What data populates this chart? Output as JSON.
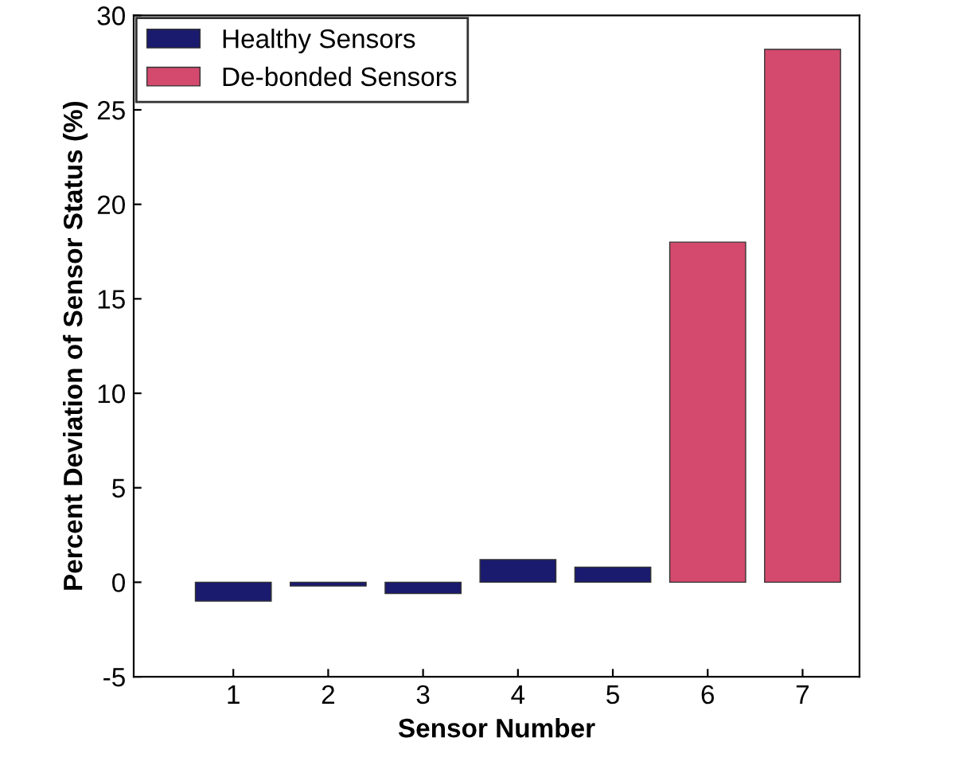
{
  "chart_data": {
    "type": "bar",
    "xlabel": "Sensor Number",
    "ylabel": "Percent Deviation of Sensor Status (%)",
    "categories": [
      "1",
      "2",
      "3",
      "4",
      "5",
      "6",
      "7"
    ],
    "series": [
      {
        "name": "Healthy Sensors",
        "color": "#1a1a6e",
        "values": [
          -1.0,
          -0.2,
          -0.6,
          1.2,
          0.8,
          null,
          null
        ]
      },
      {
        "name": "De-bonded Sensors",
        "color": "#d44a6e",
        "values": [
          null,
          null,
          null,
          null,
          null,
          18,
          28.2
        ]
      }
    ],
    "ylim": [
      -5,
      30
    ],
    "yticks": [
      -5,
      0,
      5,
      10,
      15,
      20,
      25,
      30
    ],
    "grid": false,
    "legend": "top left"
  }
}
